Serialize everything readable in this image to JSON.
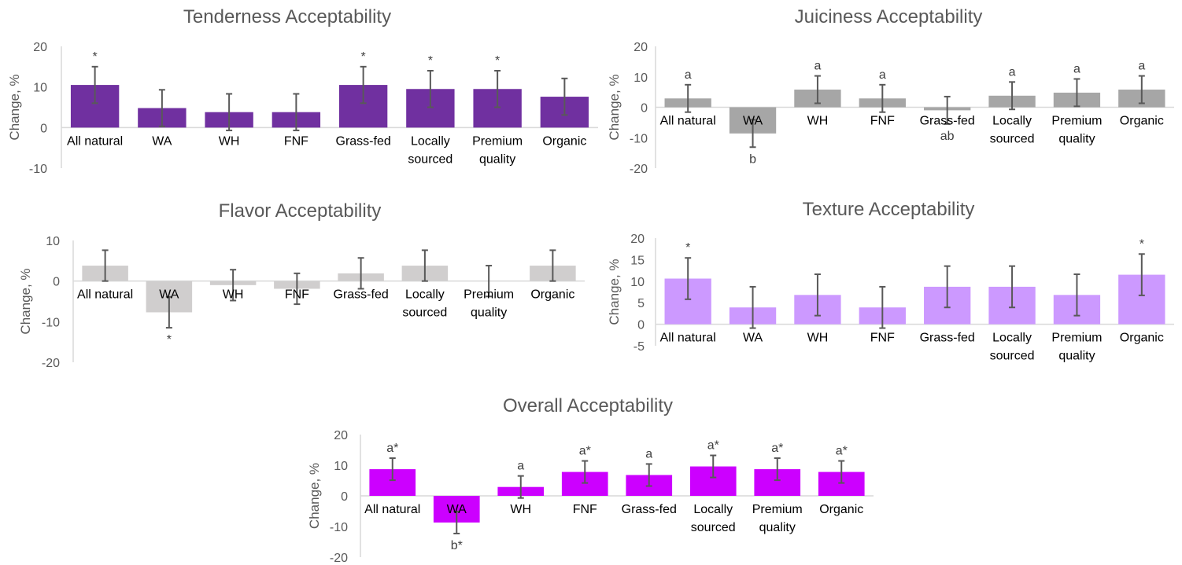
{
  "chart_data": [
    {
      "type": "bar",
      "title": "Tenderness Acceptability",
      "ylabel": "Change, %",
      "categories": [
        "All natural",
        "WA",
        "WH",
        "FNF",
        "Grass-fed",
        "Locally sourced",
        "Premium quality",
        "Organic"
      ],
      "values": [
        10.5,
        4.8,
        3.8,
        3.8,
        10.5,
        9.5,
        9.5,
        7.6
      ],
      "error": [
        4.5,
        4.5,
        4.5,
        4.5,
        4.5,
        4.5,
        4.5,
        4.5
      ],
      "annotations": [
        "*",
        "",
        "",
        "",
        "*",
        "*",
        "*",
        ""
      ],
      "annotation_position": [
        "above",
        "",
        "",
        "",
        "above",
        "above",
        "above",
        ""
      ],
      "ylim": [
        -10,
        20
      ],
      "yticks": [
        -10,
        0,
        10,
        20
      ],
      "color": "#7030a0",
      "grid": false,
      "legend": "none"
    },
    {
      "type": "bar",
      "title": "Juiciness Acceptability",
      "ylabel": "Change, %",
      "categories": [
        "All natural",
        "WA",
        "WH",
        "FNF",
        "Grass-fed",
        "Locally sourced",
        "Premium quality",
        "Organic"
      ],
      "values": [
        2.9,
        -8.6,
        5.8,
        2.9,
        -1.0,
        3.8,
        4.8,
        5.8
      ],
      "error": [
        4.5,
        4.5,
        4.5,
        4.5,
        4.5,
        4.5,
        4.5,
        4.5
      ],
      "annotations": [
        "a",
        "b",
        "a",
        "a",
        "ab",
        "a",
        "a",
        "a"
      ],
      "annotation_position": [
        "above",
        "below",
        "above",
        "above",
        "below",
        "above",
        "above",
        "above"
      ],
      "ylim": [
        -20,
        20
      ],
      "yticks": [
        -20,
        -10,
        0,
        10,
        20
      ],
      "color": "#a6a6a6",
      "grid": false,
      "legend": "none"
    },
    {
      "type": "bar",
      "title": "Flavor Acceptability",
      "ylabel": "Change, %",
      "categories": [
        "All natural",
        "WA",
        "WH",
        "FNF",
        "Grass-fed",
        "Locally sourced",
        "Premium quality",
        "Organic"
      ],
      "values": [
        3.8,
        -7.7,
        -1.0,
        -1.9,
        1.9,
        3.8,
        0.0,
        3.8
      ],
      "error": [
        3.8,
        3.8,
        3.8,
        3.8,
        3.8,
        3.8,
        3.8,
        3.8
      ],
      "annotations": [
        "",
        "*",
        "",
        "",
        "",
        "",
        "",
        ""
      ],
      "annotation_position": [
        "",
        "below",
        "",
        "",
        "",
        "",
        "",
        ""
      ],
      "ylim": [
        -20,
        10
      ],
      "yticks": [
        -20,
        -10,
        0,
        10
      ],
      "color": "#d0cece",
      "grid": false,
      "legend": "none"
    },
    {
      "type": "bar",
      "title": "Texture Acceptability",
      "ylabel": "Change, %",
      "categories": [
        "All natural",
        "WA",
        "WH",
        "FNF",
        "Grass-fed",
        "Locally sourced",
        "Premium quality",
        "Organic"
      ],
      "values": [
        10.6,
        3.9,
        6.8,
        3.9,
        8.7,
        8.7,
        6.8,
        11.5
      ],
      "error": [
        4.8,
        4.8,
        4.8,
        4.8,
        4.8,
        4.8,
        4.8,
        4.8
      ],
      "annotations": [
        "*",
        "",
        "",
        "",
        "",
        "",
        "",
        "*"
      ],
      "annotation_position": [
        "above",
        "",
        "",
        "",
        "",
        "",
        "",
        "above"
      ],
      "ylim": [
        -5,
        20
      ],
      "yticks": [
        -5,
        0,
        5,
        10,
        15,
        20
      ],
      "color": "#cc99ff",
      "grid": false,
      "legend": "none"
    },
    {
      "type": "bar",
      "title": "Overall Acceptability",
      "ylabel": "Change, %",
      "categories": [
        "All natural",
        "WA",
        "WH",
        "FNF",
        "Grass-fed",
        "Locally sourced",
        "Premium quality",
        "Organic"
      ],
      "values": [
        8.7,
        -8.7,
        2.9,
        7.8,
        6.8,
        9.6,
        8.7,
        7.8
      ],
      "error": [
        3.6,
        3.6,
        3.6,
        3.6,
        3.6,
        3.6,
        3.6,
        3.6
      ],
      "annotations": [
        "a*",
        "b*",
        "a",
        "a*",
        "a",
        "a*",
        "a*",
        "a*"
      ],
      "annotation_position": [
        "above",
        "below",
        "above",
        "above",
        "above",
        "above",
        "above",
        "above"
      ],
      "ylim": [
        -20,
        20
      ],
      "yticks": [
        -20,
        -10,
        0,
        10,
        20
      ],
      "color": "#cc00ff",
      "grid": false,
      "legend": "none"
    }
  ]
}
